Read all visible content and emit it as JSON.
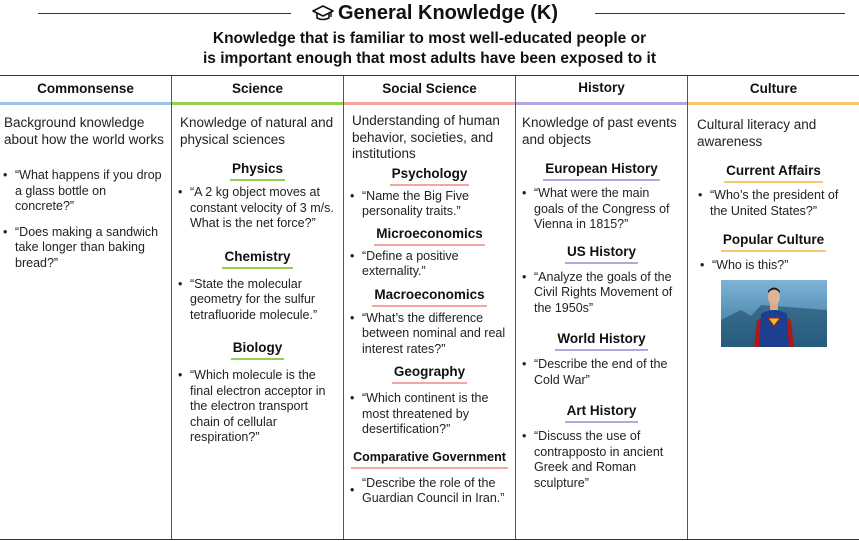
{
  "header": {
    "title": "General Knowledge (K)",
    "subtitle_line1": "Knowledge that is familiar to most well-educated people or",
    "subtitle_line2": "is important enough that most adults have been exposed to it"
  },
  "colors": {
    "commonsense": "#9dc3e6",
    "science": "#92d050",
    "social_science": "#f4a6a0",
    "history": "#b4a7e0",
    "culture": "#f5c86b"
  },
  "columns": {
    "commonsense": {
      "header": "Commonsense",
      "desc": "Background knowledge about how the world works",
      "items": [
        "“What happens if you drop a glass bottle on concrete?”",
        "“Does making a sandwich take longer than baking bread?”"
      ]
    },
    "science": {
      "header": "Science",
      "desc": "Knowledge of natural and physical sciences",
      "physics": {
        "title": "Physics",
        "item": "“A 2 kg object moves at constant velocity of 3 m/s. What is the net force?”"
      },
      "chemistry": {
        "title": "Chemistry",
        "item": "“State the molecular geometry for the sulfur tetrafluoride molecule.”"
      },
      "biology": {
        "title": "Biology",
        "item": "“Which molecule is the final electron acceptor in the electron transport chain of cellular respiration?”"
      }
    },
    "social_science": {
      "header": "Social Science",
      "desc": "Understanding of human behavior, societies, and institutions",
      "psychology": {
        "title": "Psychology",
        "item": "“Name the Big Five personality traits.”"
      },
      "microeconomics": {
        "title": "Microeconomics",
        "item": "“Define a positive externality.”"
      },
      "macroeconomics": {
        "title": "Macroeconomics",
        "item": "“What’s the difference between nominal and real interest rates?”"
      },
      "geography": {
        "title": "Geography",
        "item": "“Which continent is the most threatened by desertification?”"
      },
      "comparative_government": {
        "title": "Comparative Government",
        "item": "“Describe the role of the Guardian Council in Iran.”"
      }
    },
    "history": {
      "header": "History",
      "desc": "Knowledge of past events and objects",
      "european": {
        "title": "European History",
        "item": "“What were the main goals of the Congress of Vienna in 1815?”"
      },
      "us": {
        "title": "US History",
        "item": "“Analyze the goals of the Civil Rights Movement of the 1950s”"
      },
      "world": {
        "title": "World History",
        "item": "“Describe the end of the Cold War”"
      },
      "art": {
        "title": "Art History",
        "item": "“Discuss the use of contrapposto in ancient Greek and Roman sculpture”"
      }
    },
    "culture": {
      "header": "Culture",
      "desc": "Cultural literacy and awareness",
      "current_affairs": {
        "title": "Current Affairs",
        "item": "“Who’s the president of the United States?”"
      },
      "popular_culture": {
        "title": "Popular Culture",
        "item": "“Who is this?”"
      }
    }
  }
}
